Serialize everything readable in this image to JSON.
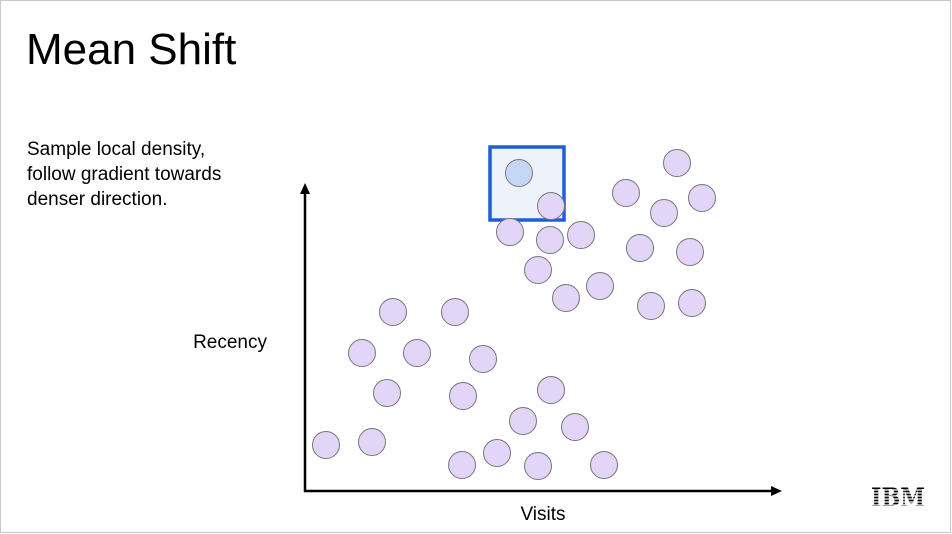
{
  "header": {
    "title": "Mean Shift"
  },
  "body": {
    "lines": [
      "Sample local density,",
      "follow gradient towards",
      "denser direction."
    ]
  },
  "diagram": {
    "y_axis_label": "Recency",
    "x_axis_label": "Visits"
  },
  "footer": {
    "logo": "IBM"
  }
}
